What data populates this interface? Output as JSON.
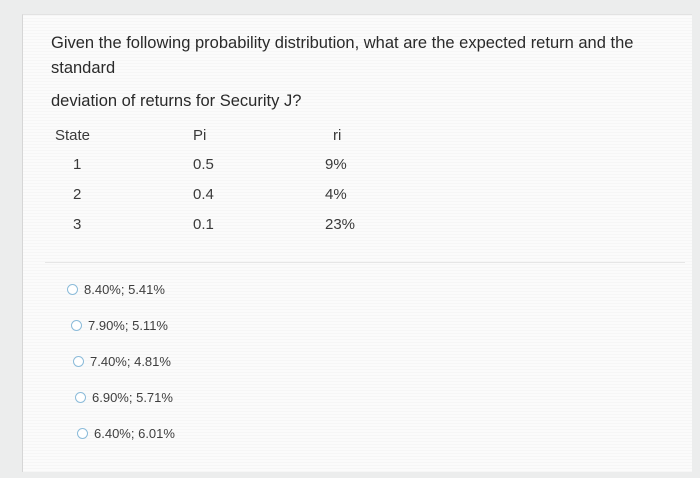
{
  "question": {
    "line1": "Given the following probability distribution, what are the expected return and the",
    "line2": "standard",
    "line3": "deviation of returns for Security J?"
  },
  "table": {
    "headers": [
      "State",
      "Pi",
      "ri"
    ],
    "rows": [
      [
        "1",
        "0.5",
        "9%"
      ],
      [
        "2",
        "0.4",
        "4%"
      ],
      [
        "3",
        "0.1",
        "23%"
      ]
    ]
  },
  "options": [
    "8.40%; 5.41%",
    "7.90%; 5.11%",
    "7.40%; 4.81%",
    "6.90%; 5.71%",
    "6.40%; 6.01%"
  ],
  "colors": {
    "radio_border": "#8bbbd9",
    "text": "#2b2b2b"
  }
}
